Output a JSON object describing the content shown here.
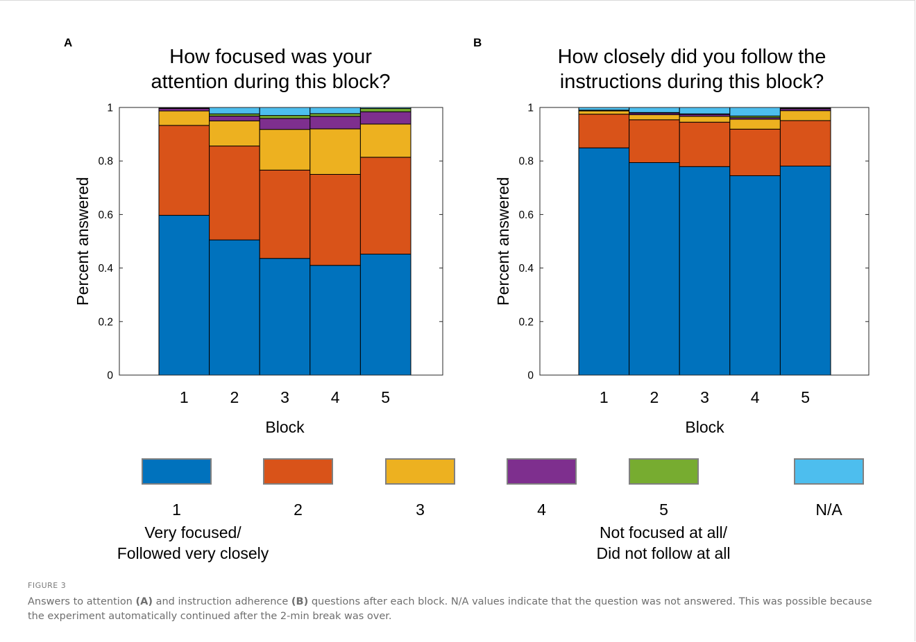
{
  "charts": [
    {
      "panel_label": "A",
      "title_lines": [
        "How focused was your",
        "attention during this block?"
      ],
      "ylabel": "Percent answered",
      "xlabel": "Block"
    },
    {
      "panel_label": "B",
      "title_lines": [
        "How closely did you follow the",
        "instructions during this block?"
      ],
      "ylabel": "Percent answered",
      "xlabel": "Block"
    }
  ],
  "chart_data": [
    {
      "type": "bar",
      "stacked": true,
      "title": "How focused was your attention during this block?",
      "xlabel": "Block",
      "ylabel": "Percent answered",
      "categories": [
        "1",
        "2",
        "3",
        "4",
        "5"
      ],
      "yticks": [
        "0",
        "0.2",
        "0.4",
        "0.6",
        "0.8",
        "1"
      ],
      "ylim": [
        0,
        1
      ],
      "series": [
        {
          "name": "1",
          "values": [
            0.597,
            0.505,
            0.436,
            0.41,
            0.452
          ]
        },
        {
          "name": "2",
          "values": [
            0.336,
            0.351,
            0.33,
            0.34,
            0.362
          ]
        },
        {
          "name": "3",
          "values": [
            0.054,
            0.094,
            0.152,
            0.17,
            0.124
          ]
        },
        {
          "name": "4",
          "values": [
            0.009,
            0.018,
            0.041,
            0.047,
            0.046
          ]
        },
        {
          "name": "5",
          "values": [
            0.002,
            0.008,
            0.011,
            0.01,
            0.012
          ]
        },
        {
          "name": "N/A",
          "values": [
            0.002,
            0.024,
            0.03,
            0.023,
            0.004
          ]
        }
      ]
    },
    {
      "type": "bar",
      "stacked": true,
      "title": "How closely did you follow the instructions during this block?",
      "xlabel": "Block",
      "ylabel": "Percent answered",
      "categories": [
        "1",
        "2",
        "3",
        "4",
        "5"
      ],
      "yticks": [
        "0",
        "0.2",
        "0.4",
        "0.6",
        "0.8",
        "1"
      ],
      "ylim": [
        0,
        1
      ],
      "series": [
        {
          "name": "1",
          "values": [
            0.849,
            0.794,
            0.779,
            0.745,
            0.781
          ]
        },
        {
          "name": "2",
          "values": [
            0.126,
            0.16,
            0.166,
            0.174,
            0.17
          ]
        },
        {
          "name": "3",
          "values": [
            0.012,
            0.019,
            0.022,
            0.037,
            0.037
          ]
        },
        {
          "name": "4",
          "values": [
            0.002,
            0.006,
            0.007,
            0.006,
            0.007
          ]
        },
        {
          "name": "5",
          "values": [
            0.001,
            0.002,
            0.002,
            0.006,
            0.003
          ]
        },
        {
          "name": "N/A",
          "values": [
            0.01,
            0.019,
            0.024,
            0.032,
            0.002
          ]
        }
      ]
    }
  ],
  "colors": {
    "1": "#0072bd",
    "2": "#d95319",
    "3": "#edb120",
    "4": "#7e2f8e",
    "5": "#77ac30",
    "N/A": "#4dbeee"
  },
  "legend": {
    "items": [
      {
        "key": "1",
        "label": "1"
      },
      {
        "key": "2",
        "label": "2"
      },
      {
        "key": "3",
        "label": "3"
      },
      {
        "key": "4",
        "label": "4"
      },
      {
        "key": "5",
        "label": "5"
      },
      {
        "key": "N/A",
        "label": "N/A"
      }
    ],
    "low_desc": [
      "Very focused/",
      "Followed very closely"
    ],
    "high_desc": [
      "Not focused at all/",
      "Did not follow at all"
    ]
  },
  "caption": {
    "label": "FIGURE 3",
    "parts": [
      "Answers to attention ",
      "(A)",
      " and instruction adherence ",
      "(B)",
      " questions after each block. N/A values indicate that the question was not answered. This was possible because the experiment automatically continued after the 2-min break was over."
    ]
  }
}
